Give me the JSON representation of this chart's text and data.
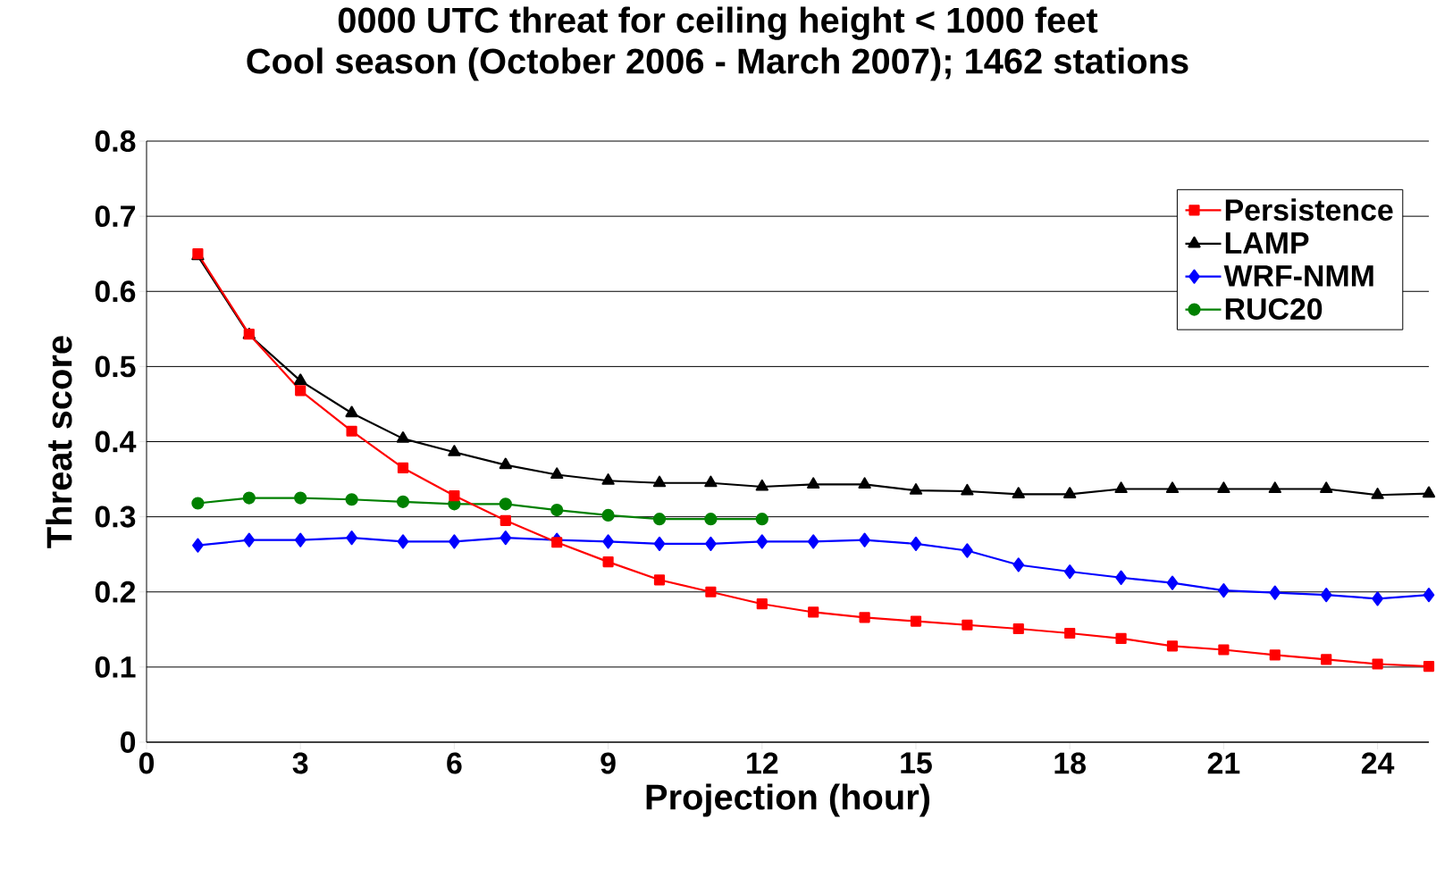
{
  "chart_data": {
    "type": "line",
    "title": "0000 UTC threat for ceiling height < 1000 feet",
    "subtitle": "Cool season (October 2006 - March 2007); 1462 stations",
    "xlabel": "Projection (hour)",
    "ylabel": "Threat score",
    "x": [
      1,
      2,
      3,
      4,
      5,
      6,
      7,
      8,
      9,
      10,
      11,
      12,
      13,
      14,
      15,
      16,
      17,
      18,
      19,
      20,
      21,
      22,
      23,
      24,
      25
    ],
    "series": [
      {
        "name": "Persistence",
        "color": "#ff0000",
        "marker": "square",
        "values": [
          0.65,
          0.543,
          0.468,
          0.414,
          0.365,
          0.328,
          0.295,
          0.266,
          0.24,
          0.216,
          0.2,
          0.184,
          0.173,
          0.166,
          0.161,
          0.156,
          0.151,
          0.145,
          0.138,
          0.128,
          0.123,
          0.116,
          0.11,
          0.104,
          0.101
        ]
      },
      {
        "name": "LAMP",
        "color": "#000000",
        "marker": "triangle",
        "values": [
          0.647,
          0.542,
          0.481,
          0.438,
          0.404,
          0.386,
          0.369,
          0.356,
          0.348,
          0.345,
          0.345,
          0.34,
          0.343,
          0.343,
          0.335,
          0.334,
          0.33,
          0.33,
          0.337,
          0.337,
          0.337,
          0.337,
          0.337,
          0.329,
          0.331
        ]
      },
      {
        "name": "WRF-NMM",
        "color": "#0000ff",
        "marker": "diamond",
        "values": [
          0.262,
          0.269,
          0.269,
          0.272,
          0.267,
          0.267,
          0.272,
          0.269,
          0.267,
          0.264,
          0.264,
          0.267,
          0.267,
          0.269,
          0.264,
          0.255,
          0.236,
          0.227,
          0.219,
          0.212,
          0.202,
          0.199,
          0.196,
          0.191,
          0.196
        ]
      },
      {
        "name": "RUC20",
        "color": "#008000",
        "marker": "circle",
        "values": [
          0.318,
          0.325,
          0.325,
          0.323,
          0.32,
          0.317,
          0.317,
          0.309,
          0.302,
          0.297,
          0.297,
          0.297,
          null,
          null,
          null,
          null,
          null,
          null,
          null,
          null,
          null,
          null,
          null,
          null,
          null
        ]
      }
    ],
    "xlim": [
      0,
      25
    ],
    "xticks": [
      0,
      3,
      6,
      9,
      12,
      15,
      18,
      21,
      24
    ],
    "ylim": [
      0,
      0.8
    ],
    "yticks": [
      0,
      0.1,
      0.2,
      0.3,
      0.4,
      0.5,
      0.6,
      0.7,
      0.8
    ],
    "grid": "y",
    "legend": "top right"
  }
}
